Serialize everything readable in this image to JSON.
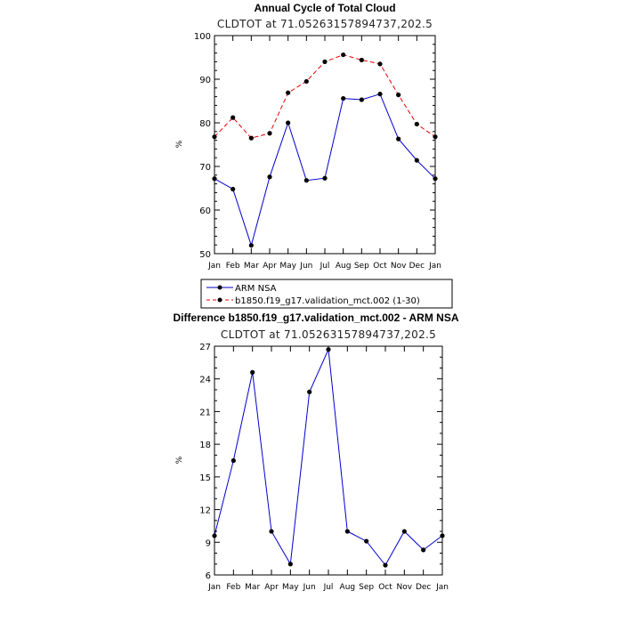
{
  "chart_data": [
    {
      "type": "line",
      "title": "Annual Cycle of Total Cloud",
      "subtitle": "CLDTOT at 71.05263157894737,202.5",
      "ylabel": "%",
      "xlabel": "",
      "categories": [
        "Jan",
        "Feb",
        "Mar",
        "Apr",
        "May",
        "Jun",
        "Jul",
        "Aug",
        "Sep",
        "Oct",
        "Nov",
        "Dec",
        "Jan"
      ],
      "ylim": [
        50,
        100
      ],
      "yticks": [
        50,
        60,
        70,
        80,
        90,
        100
      ],
      "series": [
        {
          "name": "ARM NSA",
          "color": "#0000cc",
          "dash": "solid",
          "values": [
            67.2,
            64.8,
            51.9,
            67.6,
            80.0,
            66.8,
            67.3,
            85.6,
            85.3,
            86.6,
            76.3,
            71.4,
            67.2
          ]
        },
        {
          "name": "b1850.f19_g17.validation_mct.002 (1-30)",
          "color": "#ee0000",
          "dash": "dashed",
          "values": [
            76.8,
            81.2,
            76.5,
            77.6,
            86.9,
            89.5,
            94.0,
            95.6,
            94.4,
            93.5,
            86.4,
            79.7,
            76.8
          ]
        }
      ],
      "legend_position": "below"
    },
    {
      "type": "line",
      "title": "Difference b1850.f19_g17.validation_mct.002 - ARM NSA",
      "subtitle": "CLDTOT at 71.05263157894737,202.5",
      "ylabel": "%",
      "xlabel": "",
      "categories": [
        "Jan",
        "Feb",
        "Mar",
        "Apr",
        "May",
        "Jun",
        "Jul",
        "Aug",
        "Sep",
        "Oct",
        "Nov",
        "Dec",
        "Jan"
      ],
      "ylim": [
        6,
        27
      ],
      "yticks": [
        6,
        9,
        12,
        15,
        18,
        21,
        24,
        27
      ],
      "series": [
        {
          "color": "#0000cc",
          "dash": "solid",
          "values": [
            9.6,
            16.5,
            24.6,
            10.0,
            7.0,
            22.8,
            26.7,
            10.0,
            9.1,
            6.9,
            10.0,
            8.3,
            9.6
          ]
        }
      ]
    }
  ]
}
